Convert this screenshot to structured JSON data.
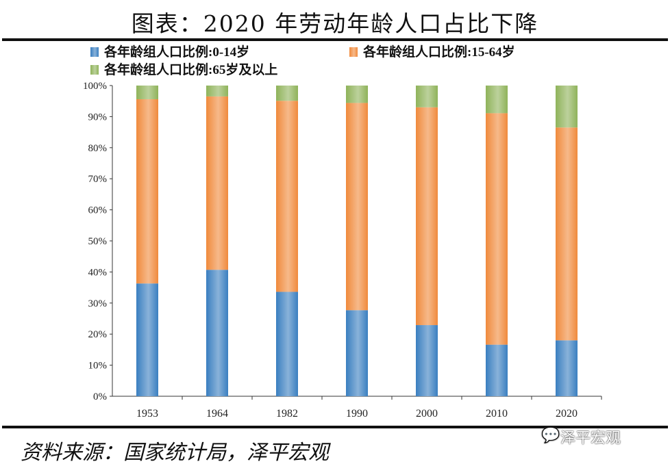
{
  "title": "图表：2020 年劳动年龄人口占比下降",
  "source": "资料来源：国家统计局，泽平宏观",
  "watermark": "泽平宏观",
  "chart_data": {
    "type": "stacked-bar",
    "categories": [
      "1953",
      "1964",
      "1982",
      "1990",
      "2000",
      "2010",
      "2020"
    ],
    "series": [
      {
        "name": "各年龄组人口比例:0-14岁",
        "color": "#3a7fc0",
        "values": [
          36.3,
          40.7,
          33.6,
          27.7,
          22.9,
          16.6,
          18.0
        ]
      },
      {
        "name": "各年龄组人口比例:15-64岁",
        "color": "#f08a3c",
        "values": [
          59.3,
          55.8,
          61.5,
          66.7,
          70.1,
          74.5,
          68.5
        ]
      },
      {
        "name": "各年龄组人口比例:65岁及以上",
        "color": "#8fb35a",
        "values": [
          4.4,
          3.5,
          4.9,
          5.6,
          7.0,
          8.9,
          13.5
        ]
      }
    ],
    "yticks": [
      "0%",
      "10%",
      "20%",
      "30%",
      "40%",
      "50%",
      "60%",
      "70%",
      "80%",
      "90%",
      "100%"
    ],
    "ylim": [
      0,
      100
    ],
    "grid": false,
    "legend": "top"
  }
}
